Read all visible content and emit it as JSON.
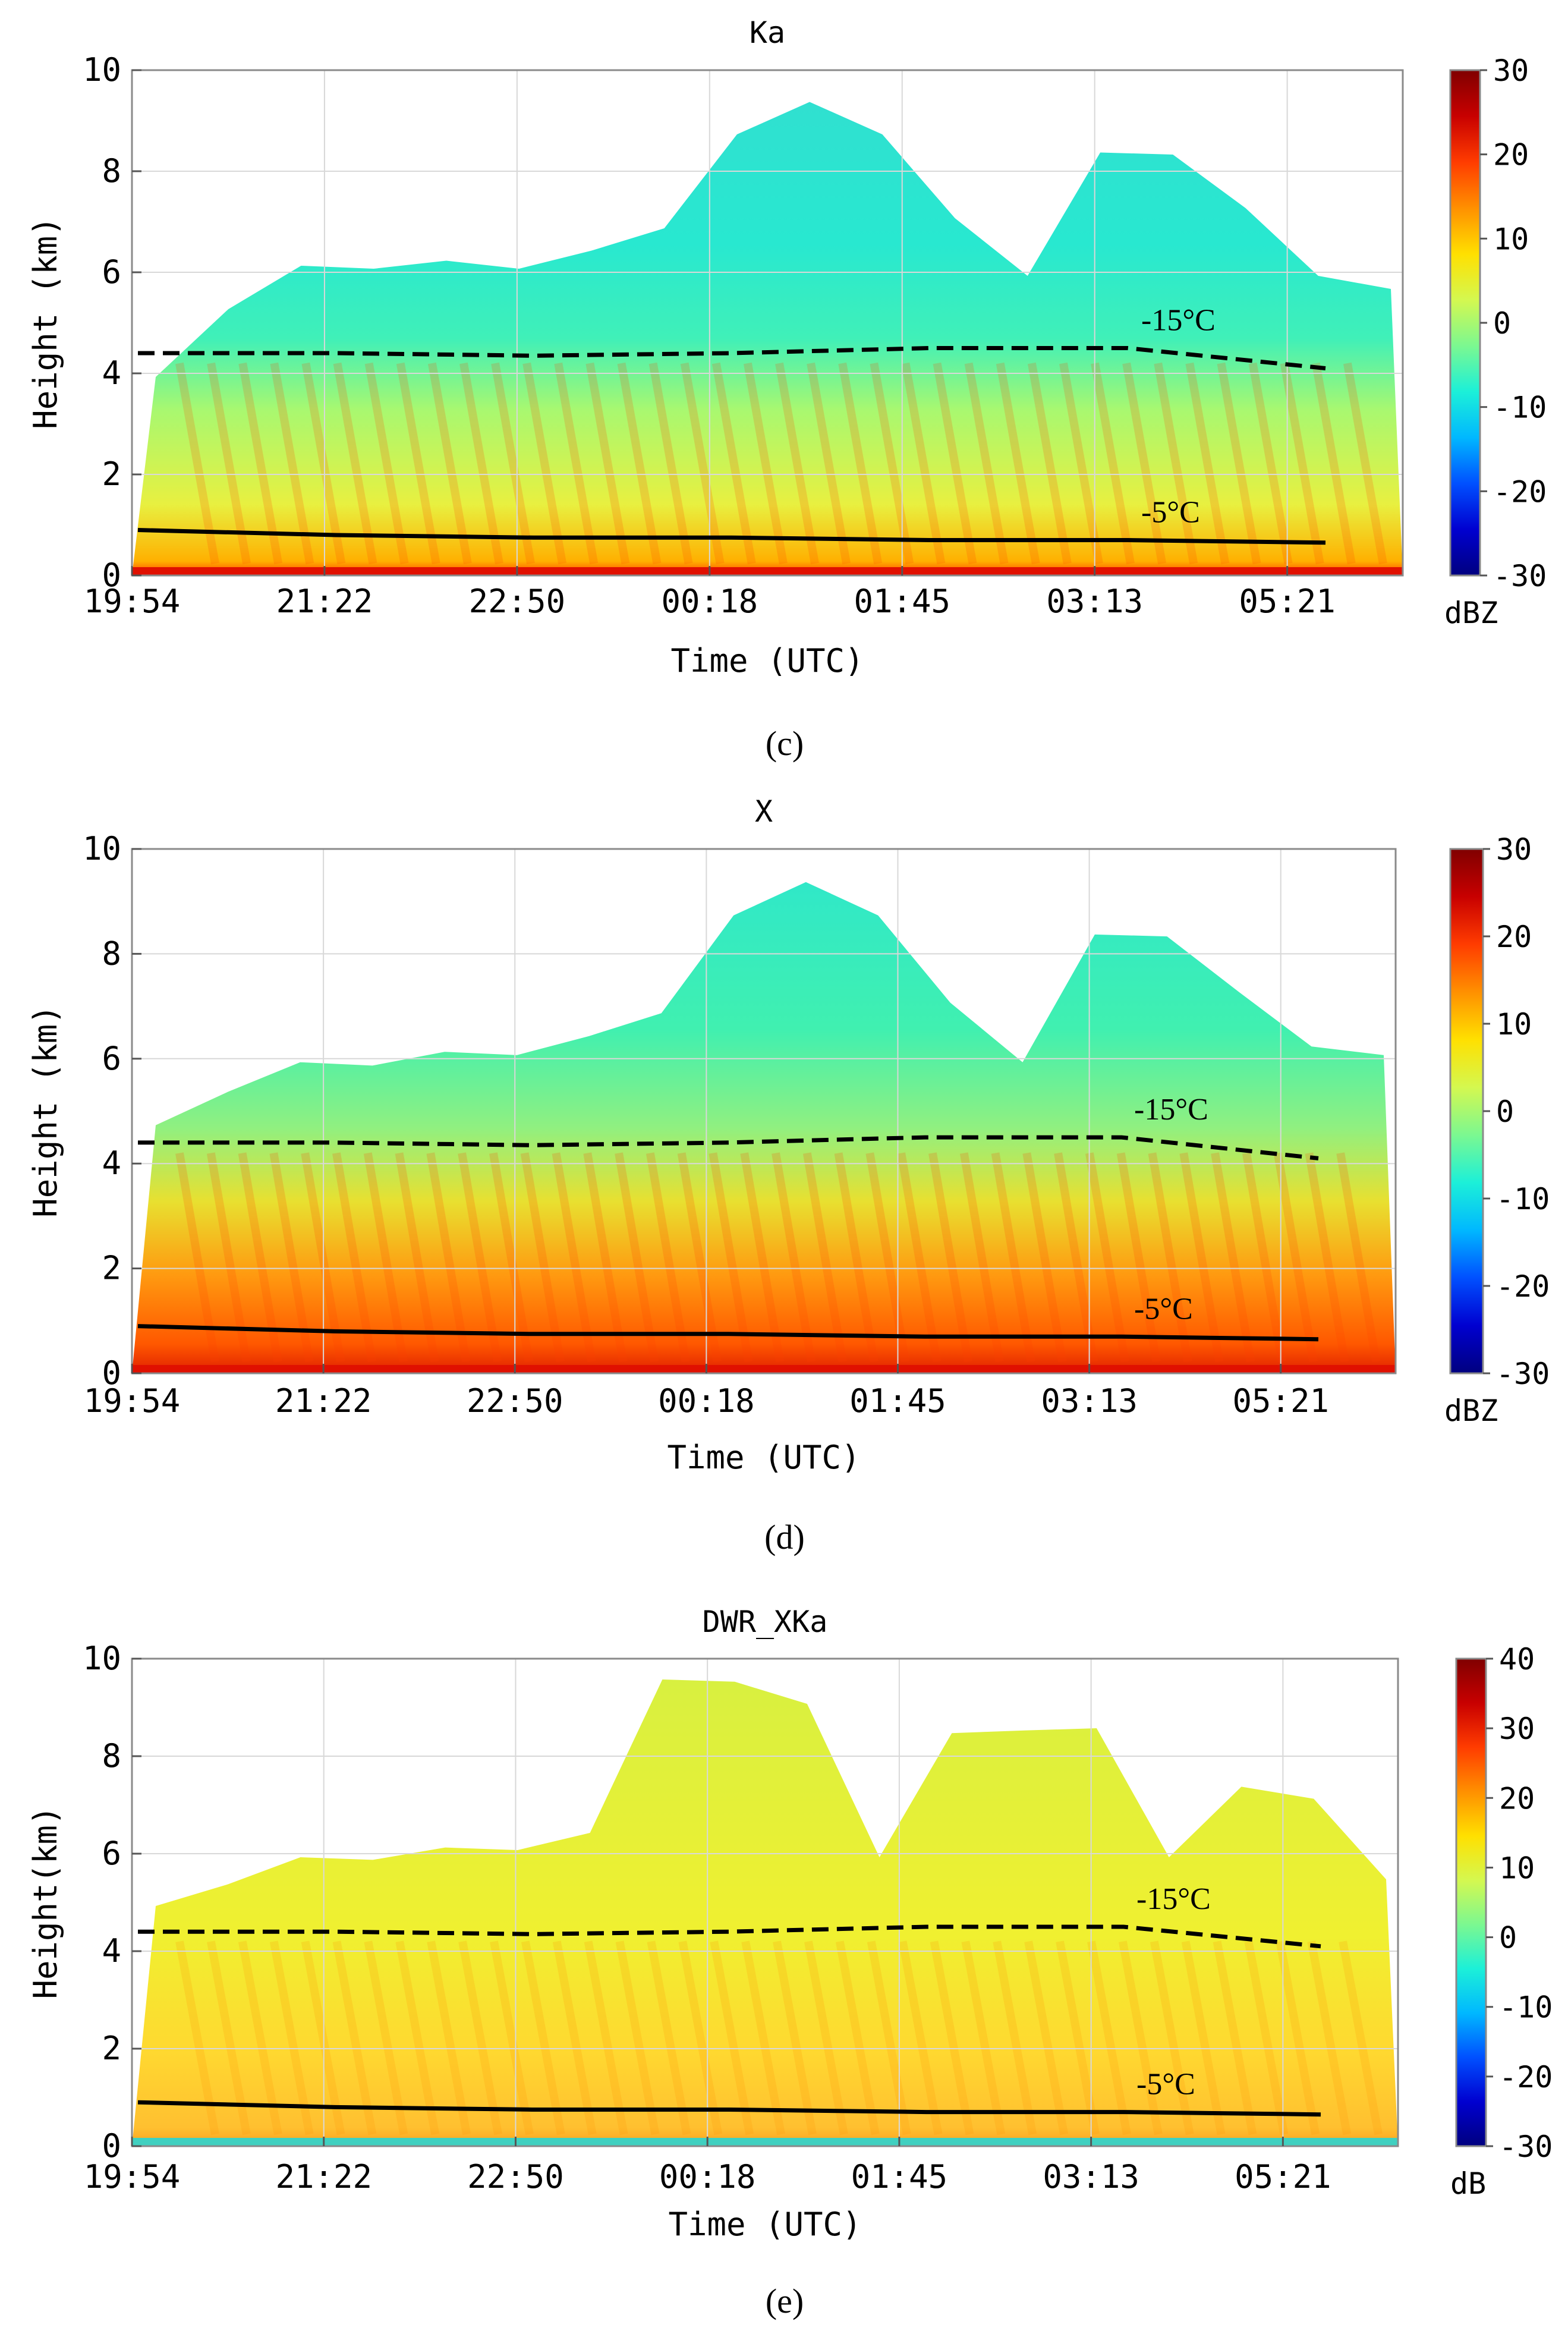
{
  "chart_data": [
    {
      "panel": "(c)",
      "type": "heatmap",
      "title": "Ka",
      "xlabel": "Time (UTC)",
      "ylabel": "Height (km)",
      "x_ticks": [
        "19:54",
        "21:22",
        "22:50",
        "00:18",
        "01:45",
        "03:13",
        "05:21"
      ],
      "y_ticks": [
        "0",
        "2",
        "4",
        "6",
        "8",
        "10"
      ],
      "ylim": [
        0,
        10
      ],
      "colorbar": {
        "unit": "dBZ",
        "range": [
          -30,
          30
        ],
        "ticks": [
          "30",
          "20",
          "10",
          "0",
          "-10",
          "-20",
          "-30"
        ]
      },
      "isotherms": [
        {
          "label": "-15°C",
          "style": "dashed",
          "heights_km": [
            4.4,
            4.4,
            4.35,
            4.4,
            4.5,
            4.5,
            4.1
          ]
        },
        {
          "label": "-5°C",
          "style": "solid",
          "heights_km": [
            0.9,
            0.8,
            0.75,
            0.75,
            0.7,
            0.7,
            0.65
          ]
        }
      ],
      "cloud_top_km": [
        4.0,
        5.2,
        6.2,
        6.0,
        6.3,
        6.0,
        6.5,
        6.8,
        8.8,
        9.3,
        8.8,
        7.0,
        6.0,
        8.3,
        8.4,
        7.2,
        6.0,
        5.6
      ]
    },
    {
      "panel": "(d)",
      "type": "heatmap",
      "title": "X",
      "xlabel": "Time (UTC)",
      "ylabel": "Height (km)",
      "x_ticks": [
        "19:54",
        "21:22",
        "22:50",
        "00:18",
        "01:45",
        "03:13",
        "05:21"
      ],
      "y_ticks": [
        "0",
        "2",
        "4",
        "6",
        "8",
        "10"
      ],
      "ylim": [
        0,
        10
      ],
      "colorbar": {
        "unit": "dBZ",
        "range": [
          -30,
          30
        ],
        "ticks": [
          "30",
          "20",
          "10",
          "0",
          "-10",
          "-20",
          "-30"
        ]
      },
      "isotherms": [
        {
          "label": "-15°C",
          "style": "dashed",
          "heights_km": [
            4.4,
            4.4,
            4.35,
            4.4,
            4.5,
            4.5,
            4.1
          ]
        },
        {
          "label": "-5°C",
          "style": "solid",
          "heights_km": [
            0.9,
            0.8,
            0.75,
            0.75,
            0.7,
            0.7,
            0.65
          ]
        }
      ],
      "cloud_top_km": [
        4.8,
        5.3,
        6.0,
        5.8,
        6.2,
        6.0,
        6.5,
        6.8,
        8.8,
        9.3,
        8.8,
        7.0,
        6.0,
        8.3,
        8.4,
        7.2,
        6.3,
        6.0
      ]
    },
    {
      "panel": "(e)",
      "type": "heatmap",
      "title": "DWR_XKa",
      "xlabel": "Time (UTC)",
      "ylabel": "Height(km)",
      "x_ticks": [
        "19:54",
        "21:22",
        "22:50",
        "00:18",
        "01:45",
        "03:13",
        "05:21"
      ],
      "y_ticks": [
        "0",
        "2",
        "4",
        "6",
        "8",
        "10"
      ],
      "ylim": [
        0,
        10
      ],
      "colorbar": {
        "unit": "dB",
        "range": [
          -30,
          40
        ],
        "ticks": [
          "40",
          "30",
          "20",
          "10",
          "0",
          "-10",
          "-20",
          "-30"
        ]
      },
      "isotherms": [
        {
          "label": "-15°C",
          "style": "dashed",
          "heights_km": [
            4.4,
            4.4,
            4.35,
            4.4,
            4.5,
            4.5,
            4.1
          ]
        },
        {
          "label": "-5°C",
          "style": "solid",
          "heights_km": [
            0.9,
            0.8,
            0.75,
            0.75,
            0.7,
            0.7,
            0.65
          ]
        }
      ],
      "cloud_top_km": [
        5.0,
        5.3,
        6.0,
        5.8,
        6.2,
        6.0,
        6.5,
        9.5,
        9.6,
        9.0,
        6.0,
        8.4,
        8.6,
        8.5,
        6.0,
        7.3,
        7.2,
        5.4
      ]
    }
  ],
  "colors": {
    "frame": "#8a8a8a",
    "grid": "#d8d8d8",
    "text": "#000000",
    "isotherm": "#000000"
  },
  "colormap": [
    "#00007f",
    "#0000d0",
    "#0050ff",
    "#00b8ff",
    "#1cf0d8",
    "#7cf890",
    "#d4f850",
    "#ffe000",
    "#ff9000",
    "#ff3c00",
    "#c80000",
    "#800000"
  ]
}
